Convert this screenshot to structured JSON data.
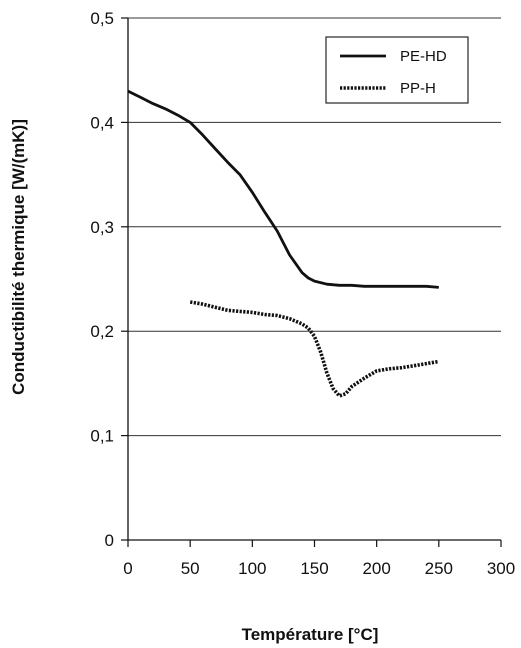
{
  "chart_data": {
    "type": "line",
    "title": "",
    "xlabel": "Température [°C]",
    "ylabel": "Conductibilité thermique [W/(mK)]",
    "xlim": [
      0,
      300
    ],
    "ylim": [
      0,
      0.5
    ],
    "x_ticks": [
      0,
      50,
      100,
      150,
      200,
      250,
      300
    ],
    "x_tick_labels": [
      "0",
      "50",
      "100",
      "150",
      "200",
      "250",
      "300"
    ],
    "y_ticks": [
      0,
      0.1,
      0.2,
      0.3,
      0.4,
      0.5
    ],
    "y_tick_labels": [
      "0",
      "0,1",
      "0,2",
      "0,3",
      "0,4",
      "0,5"
    ],
    "grid": "horizontal",
    "legend_position": "top-right",
    "series": [
      {
        "name": "PE-HD",
        "style": "solid",
        "color": "#111111",
        "x": [
          0,
          10,
          20,
          30,
          40,
          50,
          60,
          70,
          80,
          90,
          100,
          110,
          120,
          130,
          140,
          145,
          150,
          160,
          170,
          180,
          190,
          200,
          210,
          220,
          230,
          240,
          250
        ],
        "y": [
          0.43,
          0.424,
          0.418,
          0.413,
          0.407,
          0.4,
          0.388,
          0.375,
          0.362,
          0.35,
          0.333,
          0.314,
          0.296,
          0.273,
          0.256,
          0.251,
          0.248,
          0.245,
          0.244,
          0.244,
          0.243,
          0.243,
          0.243,
          0.243,
          0.243,
          0.243,
          0.242
        ]
      },
      {
        "name": "PP-H",
        "style": "dotted",
        "color": "#111111",
        "x": [
          50,
          60,
          70,
          80,
          90,
          100,
          110,
          120,
          130,
          140,
          145,
          150,
          155,
          160,
          165,
          170,
          175,
          180,
          190,
          200,
          210,
          220,
          230,
          240,
          250
        ],
        "y": [
          0.228,
          0.226,
          0.223,
          0.22,
          0.219,
          0.218,
          0.216,
          0.215,
          0.212,
          0.207,
          0.203,
          0.195,
          0.18,
          0.16,
          0.145,
          0.138,
          0.14,
          0.147,
          0.155,
          0.162,
          0.164,
          0.165,
          0.167,
          0.169,
          0.171
        ]
      }
    ]
  }
}
